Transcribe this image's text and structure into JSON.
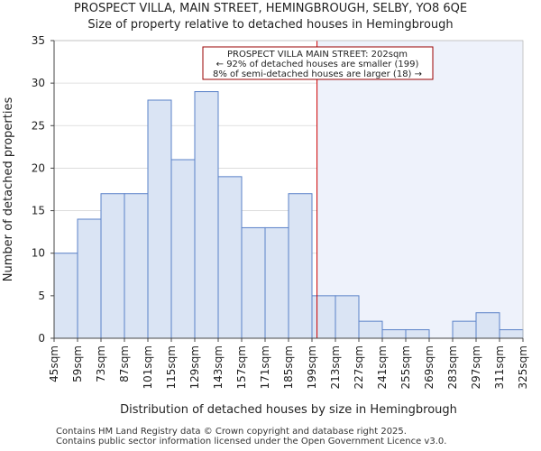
{
  "title": "PROSPECT VILLA, MAIN STREET, HEMINGBROUGH, SELBY, YO8 6QE",
  "subtitle": "Size of property relative to detached houses in Hemingbrough",
  "footer": {
    "line1": "Contains HM Land Registry data © Crown copyright and database right 2025.",
    "line2": "Contains public sector information licensed under the Open Government Licence v3.0."
  },
  "colors": {
    "bar_fill": "#dae4f4",
    "bar_edge": "#5a82c8",
    "highlight_region": "#eef2fb",
    "marker_line": "#cc0000",
    "annotation_border": "#990000"
  },
  "chart_data": {
    "type": "bar",
    "xlabel": "Distribution of detached houses by size in Hemingbrough",
    "ylabel": "Number of detached properties",
    "ylim": [
      0,
      35
    ],
    "yticks": [
      0,
      5,
      10,
      15,
      20,
      25,
      30,
      35
    ],
    "bin_edges": [
      45,
      59,
      73,
      87,
      101,
      115,
      129,
      143,
      157,
      171,
      185,
      199,
      213,
      227,
      241,
      255,
      269,
      283,
      297,
      311,
      325
    ],
    "tick_labels": [
      "45sqm",
      "59sqm",
      "73sqm",
      "87sqm",
      "101sqm",
      "115sqm",
      "129sqm",
      "143sqm",
      "157sqm",
      "171sqm",
      "185sqm",
      "199sqm",
      "213sqm",
      "227sqm",
      "241sqm",
      "255sqm",
      "269sqm",
      "283sqm",
      "297sqm",
      "311sqm",
      "325sqm"
    ],
    "values": [
      10,
      14,
      17,
      17,
      28,
      21,
      29,
      19,
      13,
      13,
      17,
      5,
      5,
      2,
      1,
      1,
      0,
      2,
      3,
      1
    ],
    "marker_value": 202,
    "annotation": {
      "line1": "PROSPECT VILLA MAIN STREET: 202sqm",
      "line2": "← 92% of detached houses are smaller (199)",
      "line3": "8% of semi-detached houses are larger (18) →"
    }
  }
}
